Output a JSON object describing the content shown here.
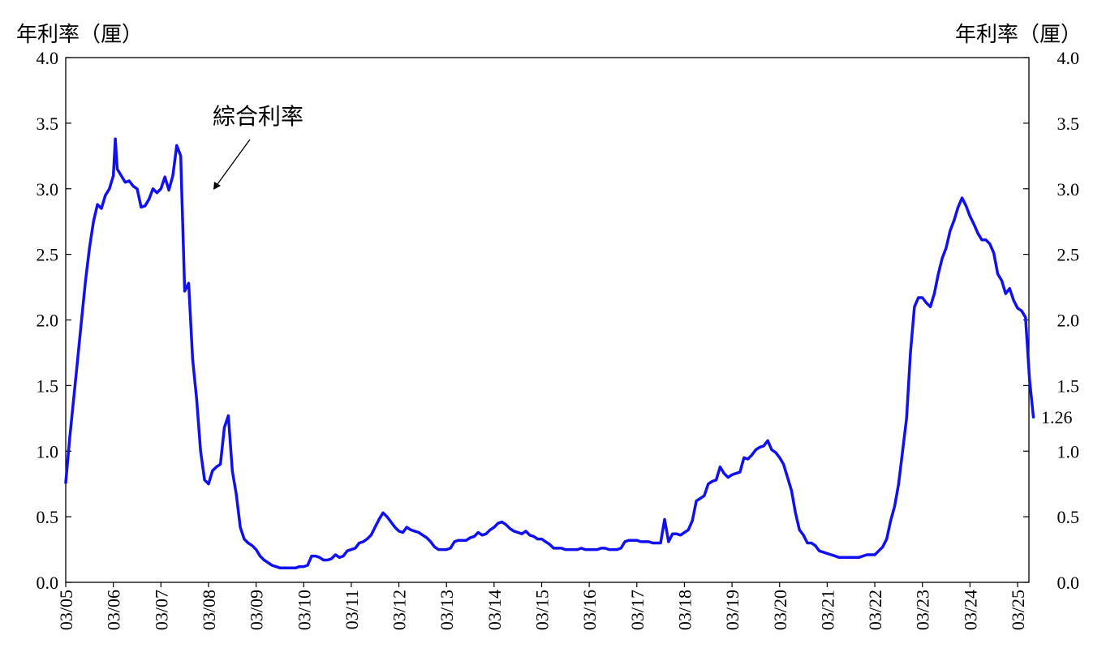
{
  "unit_left": "年利率（厘）",
  "unit_right": "年利率（厘）",
  "annotation": "綜合利率",
  "last_value_label": "1.26",
  "colors": {
    "series": "#1010f0",
    "axis": "#000000"
  },
  "chart_data": {
    "type": "line",
    "title": "",
    "ylabel_left": "年利率（厘）",
    "ylabel_right": "年利率（厘）",
    "ylim": [
      0,
      4.0
    ],
    "yticks": [
      "0.0",
      "0.5",
      "1.0",
      "1.5",
      "2.0",
      "2.5",
      "3.0",
      "3.5",
      "4.0"
    ],
    "x_start": "03/05",
    "xticks": [
      "03/05",
      "03/06",
      "03/07",
      "03/08",
      "03/09",
      "03/10",
      "03/11",
      "03/12",
      "03/13",
      "03/14",
      "03/15",
      "03/16",
      "03/17",
      "03/18",
      "03/19",
      "03/20",
      "03/21",
      "03/22",
      "03/23",
      "03/24",
      "03/25"
    ],
    "grid": false,
    "series": [
      {
        "name": "綜合利率",
        "points": [
          [
            "03/05",
            0.76
          ],
          [
            "04/05",
            1.1
          ],
          [
            "05/05",
            1.4
          ],
          [
            "06/05",
            1.7
          ],
          [
            "07/05",
            2.0
          ],
          [
            "08/05",
            2.3
          ],
          [
            "09/05",
            2.55
          ],
          [
            "10/05",
            2.75
          ],
          [
            "11/05",
            2.88
          ],
          [
            "12/05",
            2.85
          ],
          [
            "01/06",
            2.95
          ],
          [
            "02/06",
            3.0
          ],
          [
            "03/06",
            3.1
          ],
          [
            "03/06",
            3.38
          ],
          [
            "04/06",
            3.15
          ],
          [
            "05/06",
            3.1
          ],
          [
            "06/06",
            3.05
          ],
          [
            "07/06",
            3.06
          ],
          [
            "08/06",
            3.02
          ],
          [
            "09/06",
            3.0
          ],
          [
            "10/06",
            2.86
          ],
          [
            "11/06",
            2.87
          ],
          [
            "12/06",
            2.92
          ],
          [
            "01/07",
            3.0
          ],
          [
            "02/07",
            2.97
          ],
          [
            "03/07",
            3.0
          ],
          [
            "04/07",
            3.09
          ],
          [
            "05/07",
            2.99
          ],
          [
            "06/07",
            3.1
          ],
          [
            "07/07",
            3.33
          ],
          [
            "08/07",
            3.25
          ],
          [
            "09/07",
            2.22
          ],
          [
            "10/07",
            2.28
          ],
          [
            "11/07",
            1.7
          ],
          [
            "12/07",
            1.4
          ],
          [
            "01/08",
            1.0
          ],
          [
            "02/08",
            0.78
          ],
          [
            "03/08",
            0.75
          ],
          [
            "04/08",
            0.85
          ],
          [
            "05/08",
            0.88
          ],
          [
            "06/08",
            0.9
          ],
          [
            "07/08",
            1.18
          ],
          [
            "08/08",
            1.27
          ],
          [
            "09/08",
            0.85
          ],
          [
            "10/08",
            0.67
          ],
          [
            "11/08",
            0.42
          ],
          [
            "12/08",
            0.33
          ],
          [
            "01/09",
            0.3
          ],
          [
            "02/09",
            0.28
          ],
          [
            "03/09",
            0.25
          ],
          [
            "04/09",
            0.2
          ],
          [
            "05/09",
            0.17
          ],
          [
            "06/09",
            0.15
          ],
          [
            "07/09",
            0.13
          ],
          [
            "08/09",
            0.12
          ],
          [
            "09/09",
            0.11
          ],
          [
            "10/09",
            0.11
          ],
          [
            "11/09",
            0.11
          ],
          [
            "12/09",
            0.11
          ],
          [
            "01/10",
            0.11
          ],
          [
            "02/10",
            0.12
          ],
          [
            "03/10",
            0.12
          ],
          [
            "04/10",
            0.13
          ],
          [
            "05/10",
            0.2
          ],
          [
            "06/10",
            0.2
          ],
          [
            "07/10",
            0.19
          ],
          [
            "08/10",
            0.17
          ],
          [
            "09/10",
            0.17
          ],
          [
            "10/10",
            0.18
          ],
          [
            "11/10",
            0.21
          ],
          [
            "12/10",
            0.19
          ],
          [
            "01/11",
            0.2
          ],
          [
            "02/11",
            0.24
          ],
          [
            "03/11",
            0.25
          ],
          [
            "04/11",
            0.26
          ],
          [
            "05/11",
            0.3
          ],
          [
            "06/11",
            0.31
          ],
          [
            "07/11",
            0.33
          ],
          [
            "08/11",
            0.36
          ],
          [
            "09/11",
            0.42
          ],
          [
            "10/11",
            0.48
          ],
          [
            "11/11",
            0.53
          ],
          [
            "12/11",
            0.5
          ],
          [
            "01/12",
            0.46
          ],
          [
            "02/12",
            0.42
          ],
          [
            "03/12",
            0.39
          ],
          [
            "04/12",
            0.38
          ],
          [
            "05/12",
            0.42
          ],
          [
            "06/12",
            0.4
          ],
          [
            "07/12",
            0.39
          ],
          [
            "08/12",
            0.38
          ],
          [
            "09/12",
            0.36
          ],
          [
            "10/12",
            0.34
          ],
          [
            "11/12",
            0.31
          ],
          [
            "12/12",
            0.27
          ],
          [
            "01/13",
            0.25
          ],
          [
            "02/13",
            0.25
          ],
          [
            "03/13",
            0.25
          ],
          [
            "04/13",
            0.26
          ],
          [
            "05/13",
            0.31
          ],
          [
            "06/13",
            0.32
          ],
          [
            "07/13",
            0.32
          ],
          [
            "08/13",
            0.32
          ],
          [
            "09/13",
            0.34
          ],
          [
            "10/13",
            0.35
          ],
          [
            "11/13",
            0.38
          ],
          [
            "12/13",
            0.36
          ],
          [
            "01/14",
            0.37
          ],
          [
            "02/14",
            0.4
          ],
          [
            "03/14",
            0.42
          ],
          [
            "04/14",
            0.45
          ],
          [
            "05/14",
            0.46
          ],
          [
            "06/14",
            0.44
          ],
          [
            "07/14",
            0.41
          ],
          [
            "08/14",
            0.39
          ],
          [
            "09/14",
            0.38
          ],
          [
            "10/14",
            0.37
          ],
          [
            "11/14",
            0.39
          ],
          [
            "12/14",
            0.36
          ],
          [
            "01/15",
            0.35
          ],
          [
            "02/15",
            0.33
          ],
          [
            "03/15",
            0.33
          ],
          [
            "04/15",
            0.31
          ],
          [
            "05/15",
            0.29
          ],
          [
            "06/15",
            0.26
          ],
          [
            "07/15",
            0.26
          ],
          [
            "08/15",
            0.26
          ],
          [
            "09/15",
            0.25
          ],
          [
            "10/15",
            0.25
          ],
          [
            "11/15",
            0.25
          ],
          [
            "12/15",
            0.25
          ],
          [
            "01/16",
            0.26
          ],
          [
            "02/16",
            0.25
          ],
          [
            "03/16",
            0.25
          ],
          [
            "04/16",
            0.25
          ],
          [
            "05/16",
            0.25
          ],
          [
            "06/16",
            0.26
          ],
          [
            "07/16",
            0.26
          ],
          [
            "08/16",
            0.25
          ],
          [
            "09/16",
            0.25
          ],
          [
            "10/16",
            0.25
          ],
          [
            "11/16",
            0.26
          ],
          [
            "12/16",
            0.31
          ],
          [
            "01/17",
            0.32
          ],
          [
            "02/17",
            0.32
          ],
          [
            "03/17",
            0.32
          ],
          [
            "04/17",
            0.31
          ],
          [
            "05/17",
            0.31
          ],
          [
            "06/17",
            0.31
          ],
          [
            "07/17",
            0.3
          ],
          [
            "08/17",
            0.3
          ],
          [
            "09/17",
            0.3
          ],
          [
            "10/17",
            0.48
          ],
          [
            "11/17",
            0.31
          ],
          [
            "12/17",
            0.37
          ],
          [
            "01/18",
            0.37
          ],
          [
            "02/18",
            0.36
          ],
          [
            "03/18",
            0.38
          ],
          [
            "04/18",
            0.4
          ],
          [
            "05/18",
            0.47
          ],
          [
            "06/18",
            0.62
          ],
          [
            "07/18",
            0.64
          ],
          [
            "08/18",
            0.66
          ],
          [
            "09/18",
            0.75
          ],
          [
            "10/18",
            0.77
          ],
          [
            "11/18",
            0.78
          ],
          [
            "12/18",
            0.88
          ],
          [
            "01/19",
            0.83
          ],
          [
            "02/19",
            0.8
          ],
          [
            "03/19",
            0.82
          ],
          [
            "04/19",
            0.83
          ],
          [
            "05/19",
            0.84
          ],
          [
            "06/19",
            0.95
          ],
          [
            "07/19",
            0.94
          ],
          [
            "08/19",
            0.97
          ],
          [
            "09/19",
            1.01
          ],
          [
            "10/19",
            1.03
          ],
          [
            "11/19",
            1.04
          ],
          [
            "12/19",
            1.08
          ],
          [
            "01/20",
            1.01
          ],
          [
            "02/20",
            0.99
          ],
          [
            "03/20",
            0.95
          ],
          [
            "04/20",
            0.9
          ],
          [
            "05/20",
            0.8
          ],
          [
            "06/20",
            0.7
          ],
          [
            "07/20",
            0.53
          ],
          [
            "08/20",
            0.4
          ],
          [
            "09/20",
            0.36
          ],
          [
            "10/20",
            0.3
          ],
          [
            "11/20",
            0.3
          ],
          [
            "12/20",
            0.28
          ],
          [
            "01/21",
            0.24
          ],
          [
            "02/21",
            0.23
          ],
          [
            "03/21",
            0.22
          ],
          [
            "04/21",
            0.21
          ],
          [
            "05/21",
            0.2
          ],
          [
            "06/21",
            0.19
          ],
          [
            "07/21",
            0.19
          ],
          [
            "08/21",
            0.19
          ],
          [
            "09/21",
            0.19
          ],
          [
            "10/21",
            0.19
          ],
          [
            "11/21",
            0.19
          ],
          [
            "12/21",
            0.2
          ],
          [
            "01/22",
            0.21
          ],
          [
            "02/22",
            0.21
          ],
          [
            "03/22",
            0.21
          ],
          [
            "04/22",
            0.24
          ],
          [
            "05/22",
            0.27
          ],
          [
            "06/22",
            0.33
          ],
          [
            "07/22",
            0.47
          ],
          [
            "08/22",
            0.58
          ],
          [
            "09/22",
            0.75
          ],
          [
            "10/22",
            1.0
          ],
          [
            "11/22",
            1.25
          ],
          [
            "12/22",
            1.75
          ],
          [
            "01/23",
            2.1
          ],
          [
            "02/23",
            2.17
          ],
          [
            "03/23",
            2.17
          ],
          [
            "04/23",
            2.13
          ],
          [
            "05/23",
            2.1
          ],
          [
            "06/23",
            2.2
          ],
          [
            "07/23",
            2.35
          ],
          [
            "08/23",
            2.47
          ],
          [
            "09/23",
            2.55
          ],
          [
            "10/23",
            2.68
          ],
          [
            "11/23",
            2.76
          ],
          [
            "12/23",
            2.86
          ],
          [
            "01/24",
            2.93
          ],
          [
            "02/24",
            2.87
          ],
          [
            "03/24",
            2.79
          ],
          [
            "04/24",
            2.73
          ],
          [
            "05/24",
            2.66
          ],
          [
            "06/24",
            2.61
          ],
          [
            "07/24",
            2.61
          ],
          [
            "08/24",
            2.58
          ],
          [
            "09/24",
            2.51
          ],
          [
            "10/24",
            2.35
          ],
          [
            "11/24",
            2.3
          ],
          [
            "12/24",
            2.2
          ],
          [
            "01/25",
            2.24
          ],
          [
            "02/25",
            2.15
          ],
          [
            "03/25",
            2.09
          ],
          [
            "04/25",
            2.07
          ],
          [
            "05/25",
            2.02
          ],
          [
            "06/25",
            1.55
          ],
          [
            "07/25",
            1.26
          ]
        ]
      }
    ]
  }
}
